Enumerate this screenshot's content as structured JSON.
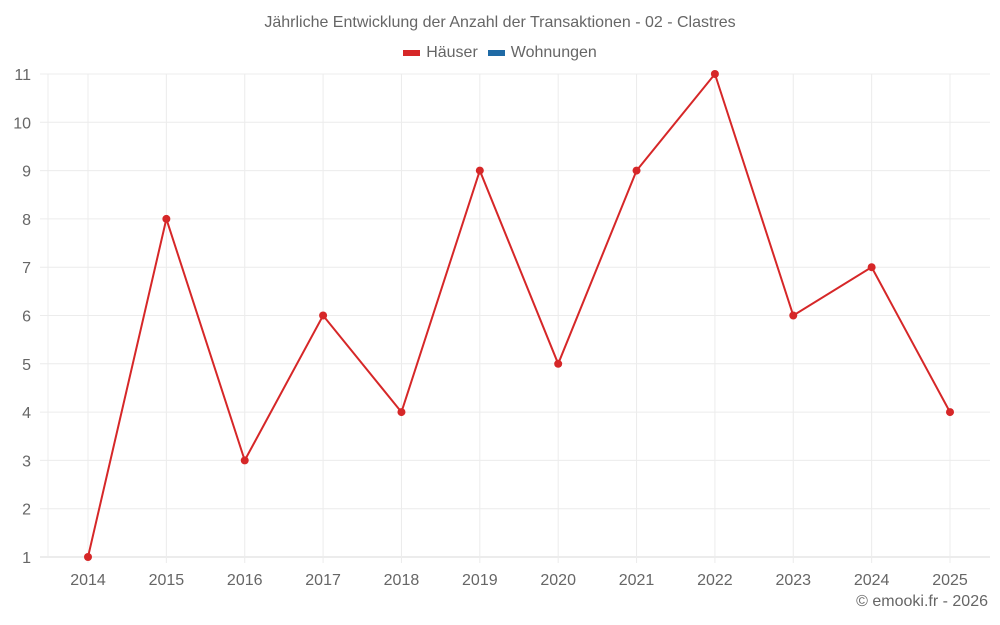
{
  "title": "Jährliche Entwicklung der Anzahl der Transaktionen - 02 - Clastres",
  "legend": [
    {
      "label": "Häuser",
      "color": "#d62728"
    },
    {
      "label": "Wohnungen",
      "color": "#1f6aa5"
    }
  ],
  "credit": "© emooki.fr - 2026",
  "chart_data": {
    "type": "line",
    "title": "Jährliche Entwicklung der Anzahl der Transaktionen - 02 - Clastres",
    "xlabel": "",
    "ylabel": "",
    "categories": [
      "2014",
      "2015",
      "2016",
      "2017",
      "2018",
      "2019",
      "2020",
      "2021",
      "2022",
      "2023",
      "2024",
      "2025"
    ],
    "series": [
      {
        "name": "Häuser",
        "color": "#d62728",
        "values": [
          1,
          8,
          3,
          6,
          4,
          9,
          5,
          9,
          11,
          6,
          7,
          4
        ]
      },
      {
        "name": "Wohnungen",
        "color": "#1f6aa5",
        "values": []
      }
    ],
    "ylim": [
      1,
      11
    ],
    "yticks": [
      1,
      2,
      3,
      4,
      5,
      6,
      7,
      8,
      9,
      10,
      11
    ],
    "grid": true,
    "legend_position": "top"
  }
}
